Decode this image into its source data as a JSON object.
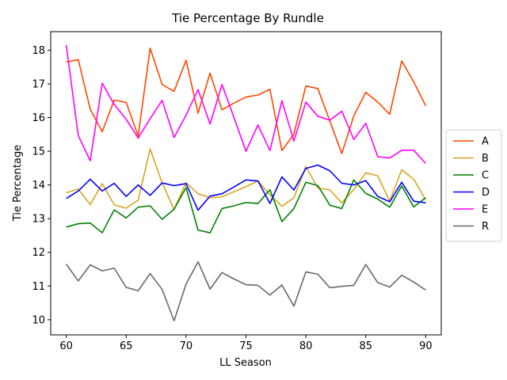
{
  "chart_data": {
    "type": "line",
    "title": "Tie Percentage By Rundle",
    "xlabel": "LL Season",
    "ylabel": "Tie Percentage",
    "xlim": [
      58.7,
      91.3
    ],
    "ylim": [
      9.55,
      18.55
    ],
    "xticks": [
      60,
      65,
      70,
      75,
      80,
      85,
      90
    ],
    "yticks": [
      10,
      11,
      12,
      13,
      14,
      15,
      16,
      17,
      18
    ],
    "grid": false,
    "legend_position": "right",
    "x": [
      60,
      61,
      62,
      63,
      64,
      65,
      66,
      67,
      68,
      69,
      70,
      71,
      72,
      73,
      74,
      75,
      76,
      77,
      78,
      79,
      80,
      81,
      82,
      83,
      84,
      85,
      86,
      87,
      88,
      89,
      90
    ],
    "series": [
      {
        "name": "A",
        "color": "#ff4500",
        "values": [
          17.65,
          17.72,
          16.25,
          15.58,
          16.52,
          16.45,
          15.45,
          18.06,
          16.98,
          16.78,
          17.7,
          16.13,
          17.32,
          16.23,
          16.43,
          16.61,
          16.67,
          16.84,
          15.02,
          15.51,
          16.94,
          16.86,
          15.9,
          14.93,
          16.05,
          16.75,
          16.46,
          16.1,
          17.68,
          17.06,
          16.35
        ]
      },
      {
        "name": "B",
        "color": "#daa520",
        "values": [
          13.77,
          13.88,
          13.42,
          14.04,
          13.41,
          13.31,
          13.55,
          15.07,
          14.06,
          13.27,
          14.07,
          13.74,
          13.62,
          13.65,
          13.8,
          13.95,
          14.12,
          13.71,
          13.37,
          13.62,
          14.55,
          13.91,
          13.85,
          13.47,
          13.86,
          14.36,
          14.27,
          13.52,
          14.45,
          14.17,
          13.56
        ]
      },
      {
        "name": "C",
        "color": "#008000",
        "values": [
          12.75,
          12.85,
          12.87,
          12.58,
          13.26,
          13.02,
          13.34,
          13.38,
          12.98,
          13.28,
          13.92,
          12.66,
          12.58,
          13.3,
          13.38,
          13.48,
          13.45,
          13.86,
          12.91,
          13.3,
          14.08,
          13.98,
          13.4,
          13.3,
          14.15,
          13.75,
          13.58,
          13.34,
          13.97,
          13.35,
          13.62
        ]
      },
      {
        "name": "D",
        "color": "#0000ff",
        "values": [
          13.6,
          13.82,
          14.17,
          13.82,
          14.05,
          13.66,
          14.0,
          13.69,
          14.06,
          13.98,
          14.04,
          13.25,
          13.67,
          13.74,
          13.94,
          14.15,
          14.12,
          13.45,
          14.24,
          13.85,
          14.49,
          14.59,
          14.42,
          14.05,
          14.0,
          14.13,
          13.66,
          13.5,
          14.08,
          13.52,
          13.47
        ]
      },
      {
        "name": "E",
        "color": "#ff00ff",
        "values": [
          18.15,
          15.47,
          14.72,
          17.02,
          16.39,
          15.95,
          15.39,
          15.97,
          16.51,
          15.41,
          16.07,
          16.83,
          15.81,
          16.98,
          16.0,
          15.0,
          15.78,
          15.02,
          16.5,
          15.3,
          16.46,
          16.04,
          15.92,
          16.19,
          15.35,
          15.83,
          14.84,
          14.8,
          15.03,
          15.03,
          14.64
        ]
      },
      {
        "name": "R",
        "color": "#696969",
        "values": [
          11.65,
          11.15,
          11.63,
          11.45,
          11.53,
          10.96,
          10.86,
          11.37,
          10.9,
          9.97,
          11.06,
          11.72,
          10.91,
          11.4,
          11.21,
          11.04,
          11.02,
          10.73,
          11.03,
          10.4,
          11.42,
          11.35,
          10.95,
          10.99,
          11.02,
          11.64,
          11.1,
          10.97,
          11.32,
          11.12,
          10.88
        ]
      }
    ]
  }
}
